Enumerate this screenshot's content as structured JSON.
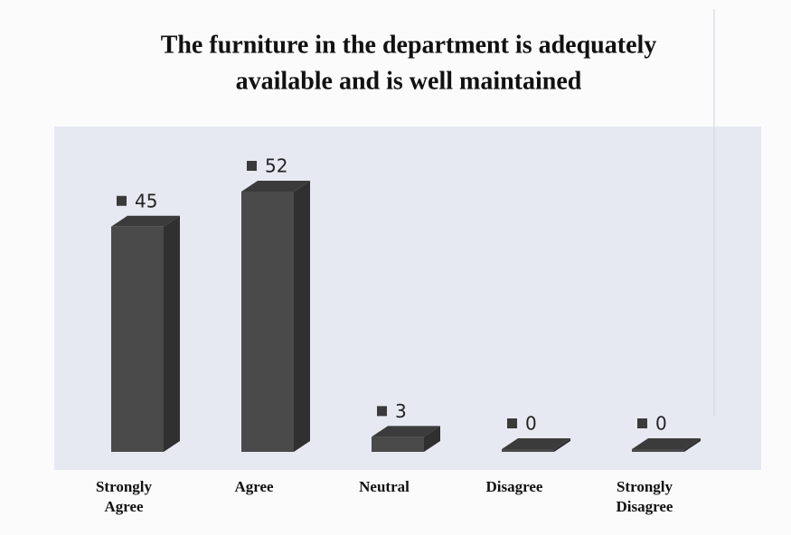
{
  "chart_data": {
    "type": "bar",
    "title": [
      "The furniture in the department is adequately",
      "available and is well maintained"
    ],
    "categories": [
      "Strongly Agree",
      "Agree",
      "Neutral",
      "Disagree",
      "Strongly Disagree"
    ],
    "values": [
      45,
      52,
      3,
      0,
      0
    ],
    "color": "#4a4a4a",
    "ylim": [
      0,
      65
    ]
  }
}
